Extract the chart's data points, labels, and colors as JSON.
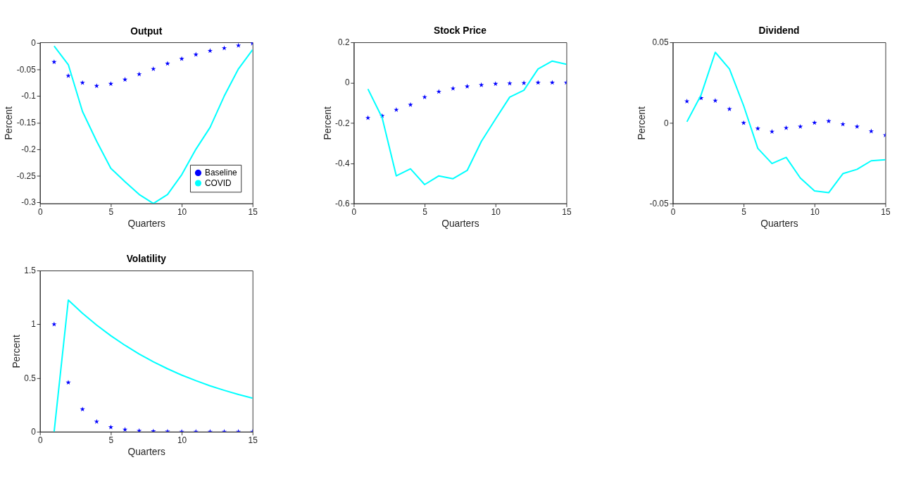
{
  "chart_data": [
    {
      "type": "line",
      "title": "Output",
      "xlabel": "Quarters",
      "ylabel": "Percent",
      "x": [
        1,
        2,
        3,
        4,
        5,
        6,
        7,
        8,
        9,
        10,
        11,
        12,
        13,
        14,
        15
      ],
      "xlim": [
        0,
        15
      ],
      "xticks": [
        0,
        5,
        10,
        15
      ],
      "ylim": [
        -0.302,
        0.001
      ],
      "yticks": [
        -0.3,
        -0.25,
        -0.2,
        -0.15,
        -0.1,
        -0.05,
        0
      ],
      "grid": false,
      "legend": "bottom right",
      "series": [
        {
          "name": "Baseline",
          "type": "scatter",
          "marker": "star",
          "color": "#0000ff",
          "values": [
            -0.036,
            -0.062,
            -0.075,
            -0.081,
            -0.077,
            -0.069,
            -0.059,
            -0.049,
            -0.039,
            -0.03,
            -0.022,
            -0.015,
            -0.01,
            -0.005,
            -0.001
          ]
        },
        {
          "name": "COVID",
          "color": "#00ffff",
          "values": [
            -0.006,
            -0.041,
            -0.129,
            -0.185,
            -0.236,
            -0.261,
            -0.285,
            -0.302,
            -0.285,
            -0.248,
            -0.2,
            -0.159,
            -0.1,
            -0.049,
            -0.013
          ]
        }
      ]
    },
    {
      "type": "line",
      "title": "Stock Price",
      "xlabel": "Quarters",
      "ylabel": "Percent",
      "x": [
        1,
        2,
        3,
        4,
        5,
        6,
        7,
        8,
        9,
        10,
        11,
        12,
        13,
        14,
        15
      ],
      "xlim": [
        0,
        15
      ],
      "xticks": [
        0,
        5,
        10,
        15
      ],
      "ylim": [
        -0.6,
        0.2
      ],
      "yticks": [
        -0.6,
        -0.4,
        -0.2,
        0,
        0.2
      ],
      "grid": false,
      "series": [
        {
          "type": "scatter",
          "marker": "star",
          "color": "#0000ff",
          "values": [
            -0.175,
            -0.165,
            -0.135,
            -0.11,
            -0.072,
            -0.045,
            -0.029,
            -0.019,
            -0.012,
            -0.006,
            -0.004,
            -0.002,
            0,
            0,
            0
          ]
        },
        {
          "color": "#00ffff",
          "values": [
            -0.032,
            -0.174,
            -0.463,
            -0.428,
            -0.506,
            -0.463,
            -0.477,
            -0.436,
            -0.292,
            -0.181,
            -0.072,
            -0.038,
            0.068,
            0.107,
            0.091
          ]
        }
      ]
    },
    {
      "type": "line",
      "title": "Dividend",
      "xlabel": "Quarters",
      "ylabel": "Percent",
      "x": [
        1,
        2,
        3,
        4,
        5,
        6,
        7,
        8,
        9,
        10,
        11,
        12,
        13,
        14,
        15
      ],
      "xlim": [
        0,
        15
      ],
      "xticks": [
        0,
        5,
        10,
        15
      ],
      "ylim": [
        -0.05,
        0.05
      ],
      "yticks": [
        -0.05,
        0,
        0.05
      ],
      "grid": false,
      "series": [
        {
          "type": "scatter",
          "marker": "star",
          "color": "#0000ff",
          "values": [
            0.0134,
            0.0154,
            0.0138,
            0.0086,
            0,
            -0.0035,
            -0.0054,
            -0.0031,
            -0.0023,
            0.0001,
            0.0011,
            -0.0008,
            -0.0023,
            -0.0052,
            -0.0076
          ]
        },
        {
          "color": "#00ffff",
          "values": [
            0.0007,
            0.0174,
            0.0438,
            0.0335,
            0.0107,
            -0.0158,
            -0.0252,
            -0.0214,
            -0.0342,
            -0.0422,
            -0.0433,
            -0.0315,
            -0.0288,
            -0.0235,
            -0.0229
          ]
        }
      ]
    },
    {
      "type": "line",
      "title": "Volatility",
      "xlabel": "Quarters",
      "ylabel": "Percent",
      "x": [
        1,
        2,
        3,
        4,
        5,
        6,
        7,
        8,
        9,
        10,
        11,
        12,
        13,
        14,
        15
      ],
      "xlim": [
        0,
        15
      ],
      "xticks": [
        0,
        5,
        10,
        15
      ],
      "ylim": [
        0,
        1.5
      ],
      "yticks": [
        0,
        0.5,
        1,
        1.5
      ],
      "grid": false,
      "series": [
        {
          "type": "scatter",
          "marker": "star",
          "color": "#0000ff",
          "values": [
            1.0,
            0.458,
            0.209,
            0.094,
            0.042,
            0.02,
            0.008,
            0.004,
            0.002,
            0,
            0,
            0,
            0,
            0,
            0
          ]
        },
        {
          "color": "#00ffff",
          "values": [
            0,
            1.225,
            1.102,
            0.992,
            0.893,
            0.804,
            0.723,
            0.651,
            0.586,
            0.527,
            0.475,
            0.427,
            0.385,
            0.346,
            0.312
          ]
        }
      ]
    }
  ]
}
